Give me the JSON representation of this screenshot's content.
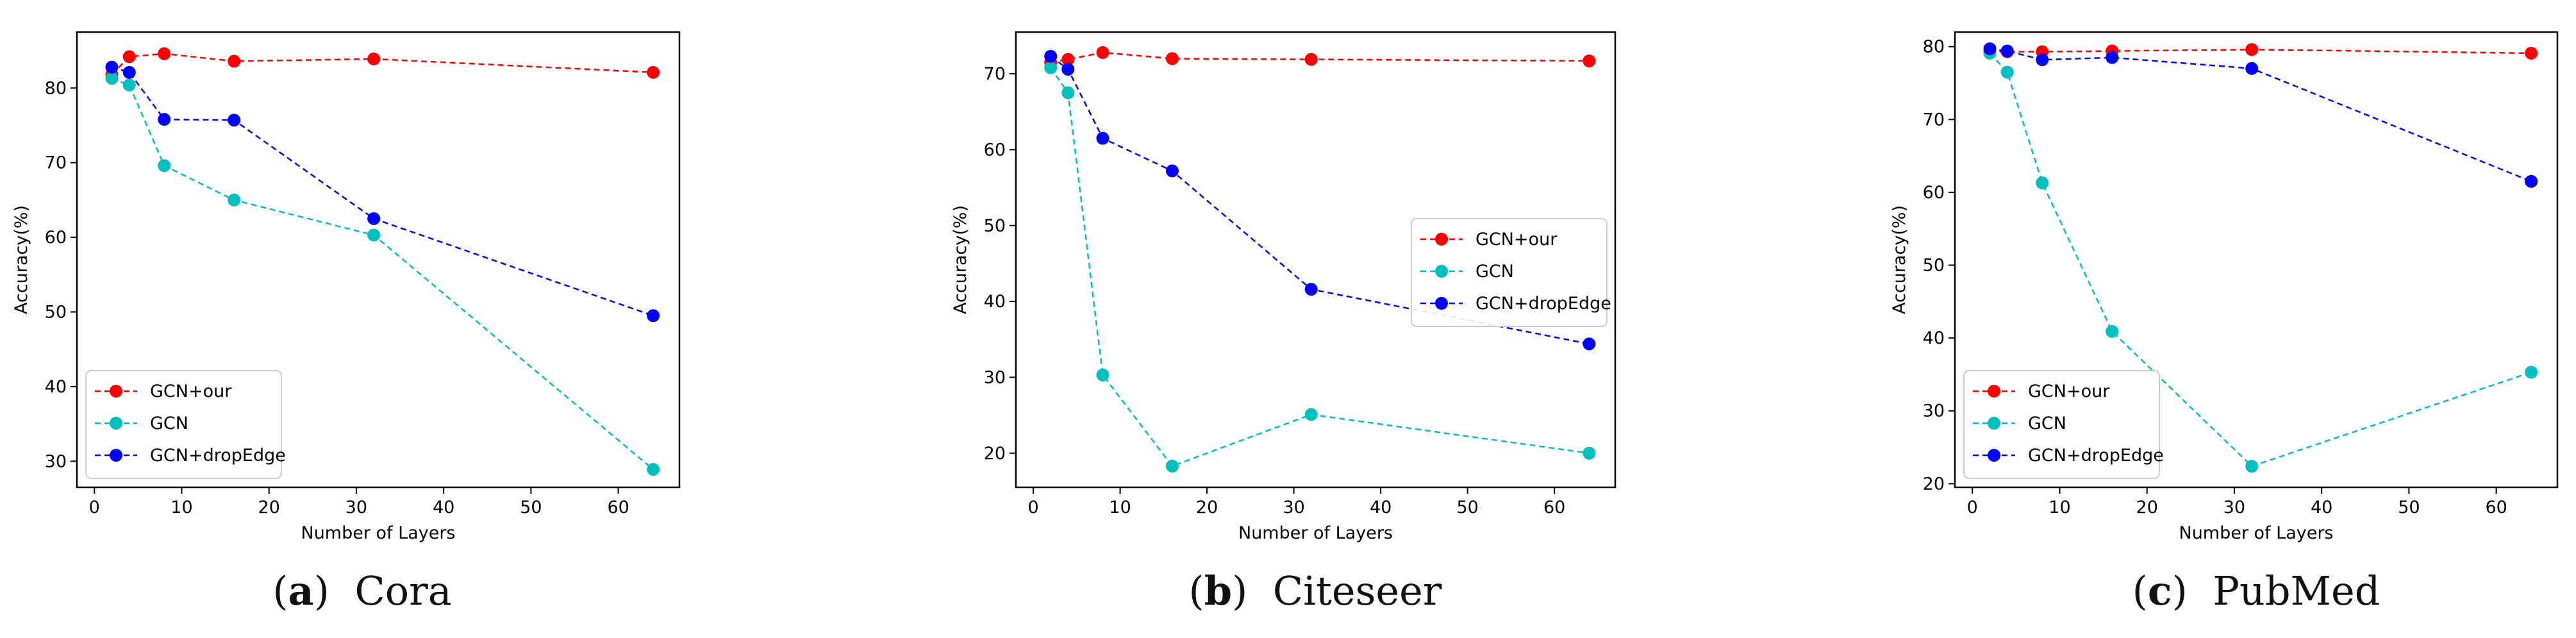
{
  "chart_data": [
    {
      "type": "line",
      "panel_label": "a",
      "title": "Cora",
      "xlabel": "Number of Layers",
      "ylabel": "Accuracy(%)",
      "xlim": [
        -2,
        67
      ],
      "ylim": [
        26.5,
        87.5
      ],
      "xticks": [
        0,
        10,
        20,
        30,
        40,
        50,
        60
      ],
      "yticks": [
        30,
        40,
        50,
        60,
        70,
        80
      ],
      "grid": false,
      "legend_position": "lower-left",
      "series": [
        {
          "name": "GCN+our",
          "color": "#ff0000",
          "x": [
            2,
            4,
            8,
            16,
            32,
            64
          ],
          "y": [
            81.8,
            84.2,
            84.6,
            83.6,
            83.9,
            82.1
          ]
        },
        {
          "name": "GCN",
          "color": "#00bfbf",
          "x": [
            2,
            4,
            8,
            16,
            32,
            64
          ],
          "y": [
            81.3,
            80.4,
            69.6,
            65.0,
            60.3,
            28.9
          ]
        },
        {
          "name": "GCN+dropEdge",
          "color": "#0000ff",
          "x": [
            2,
            4,
            8,
            16,
            32,
            64
          ],
          "y": [
            82.8,
            82.1,
            75.8,
            75.7,
            62.5,
            49.5
          ]
        }
      ]
    },
    {
      "type": "line",
      "panel_label": "b",
      "title": "Citeseer",
      "xlabel": "Number of Layers",
      "ylabel": "Accuracy(%)",
      "xlim": [
        -2,
        67
      ],
      "ylim": [
        15.5,
        75.5
      ],
      "xticks": [
        0,
        10,
        20,
        30,
        40,
        50,
        60
      ],
      "yticks": [
        20,
        30,
        40,
        50,
        60,
        70
      ],
      "grid": false,
      "legend_position": "center-right",
      "series": [
        {
          "name": "GCN+our",
          "color": "#ff0000",
          "x": [
            2,
            4,
            8,
            16,
            32,
            64
          ],
          "y": [
            71.5,
            71.9,
            72.8,
            72.0,
            71.9,
            71.7
          ]
        },
        {
          "name": "GCN",
          "color": "#00bfbf",
          "x": [
            2,
            4,
            8,
            16,
            32,
            64
          ],
          "y": [
            70.8,
            67.5,
            30.3,
            18.3,
            25.1,
            20.0
          ]
        },
        {
          "name": "GCN+dropEdge",
          "color": "#0000ff",
          "x": [
            2,
            4,
            8,
            16,
            32,
            64
          ],
          "y": [
            72.3,
            70.6,
            61.5,
            57.2,
            41.6,
            34.4
          ]
        }
      ]
    },
    {
      "type": "line",
      "panel_label": "c",
      "title": "PubMed",
      "xlabel": "Number of Layers",
      "ylabel": "Accuracy(%)",
      "xlim": [
        -2,
        67
      ],
      "ylim": [
        19.5,
        82.0
      ],
      "xticks": [
        0,
        10,
        20,
        30,
        40,
        50,
        60
      ],
      "yticks": [
        20,
        30,
        40,
        50,
        60,
        70,
        80
      ],
      "grid": false,
      "legend_position": "lower-left",
      "series": [
        {
          "name": "GCN+our",
          "color": "#ff0000",
          "x": [
            2,
            4,
            8,
            16,
            32,
            64
          ],
          "y": [
            79.3,
            79.3,
            79.3,
            79.4,
            79.6,
            79.1
          ]
        },
        {
          "name": "GCN",
          "color": "#00bfbf",
          "x": [
            2,
            4,
            8,
            16,
            32,
            64
          ],
          "y": [
            79.1,
            76.5,
            61.3,
            40.9,
            22.4,
            35.3
          ]
        },
        {
          "name": "GCN+dropEdge",
          "color": "#0000ff",
          "x": [
            2,
            4,
            8,
            16,
            32,
            64
          ],
          "y": [
            79.7,
            79.4,
            78.2,
            78.5,
            77.0,
            61.5
          ]
        }
      ]
    }
  ]
}
